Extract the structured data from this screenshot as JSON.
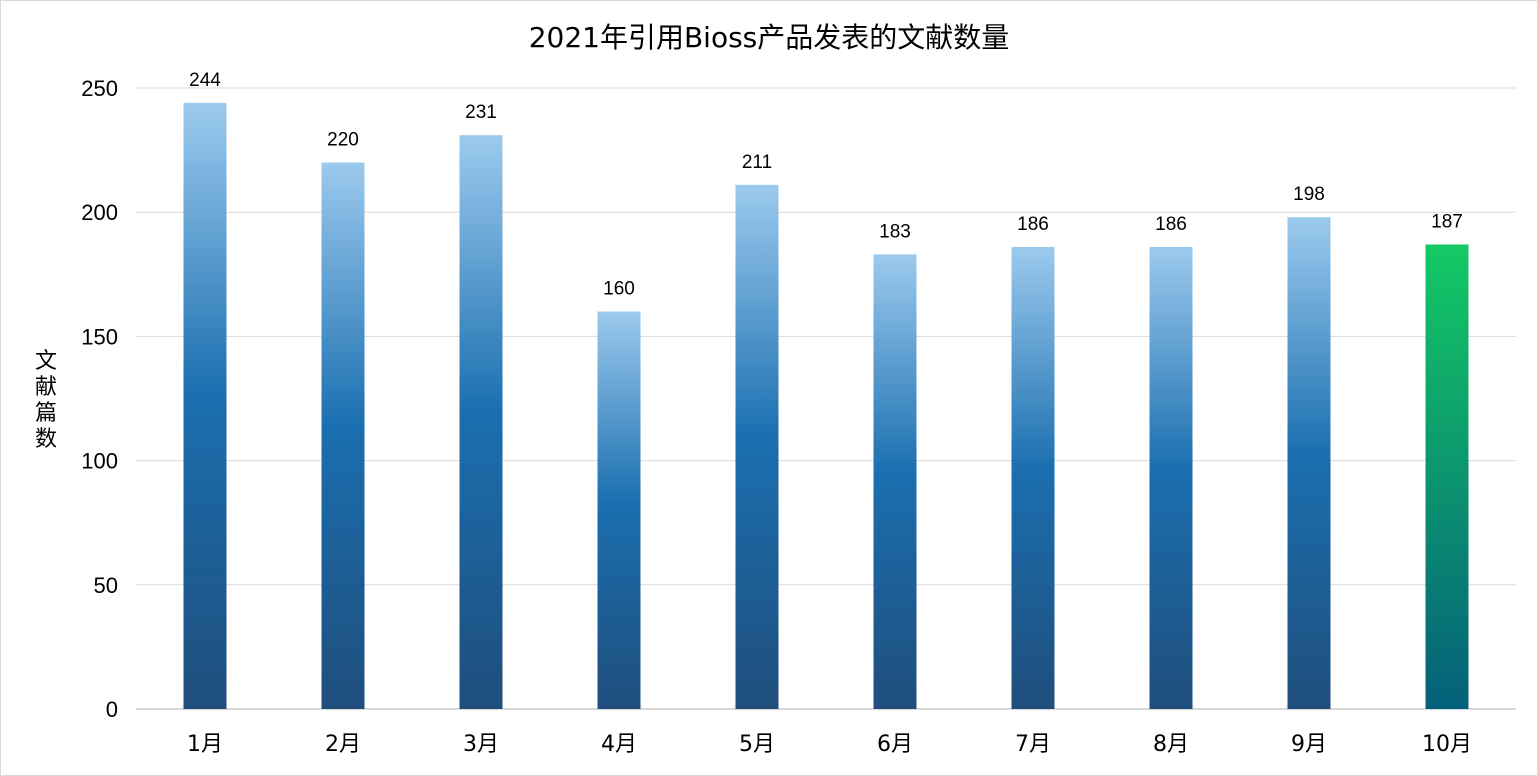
{
  "chart_data": {
    "type": "bar",
    "title": "2021年引用Bioss产品发表的文献数量",
    "xlabel": "",
    "ylabel": "文献篇数",
    "categories": [
      "1月",
      "2月",
      "3月",
      "4月",
      "5月",
      "6月",
      "7月",
      "8月",
      "9月",
      "10月"
    ],
    "values": [
      244,
      220,
      231,
      160,
      211,
      183,
      186,
      186,
      198,
      187
    ],
    "ylim": [
      0,
      250
    ],
    "yticks": [
      0,
      50,
      100,
      150,
      200,
      250
    ],
    "grid": true,
    "legend": "none",
    "colors": {
      "bar_top": "#9ccaee",
      "bar_mid": "#1b6fb0",
      "bar_bottom": "#1f4e7c",
      "highlight_top": "#14c964",
      "highlight_bottom": "#04607a"
    },
    "highlight_index": 9
  }
}
